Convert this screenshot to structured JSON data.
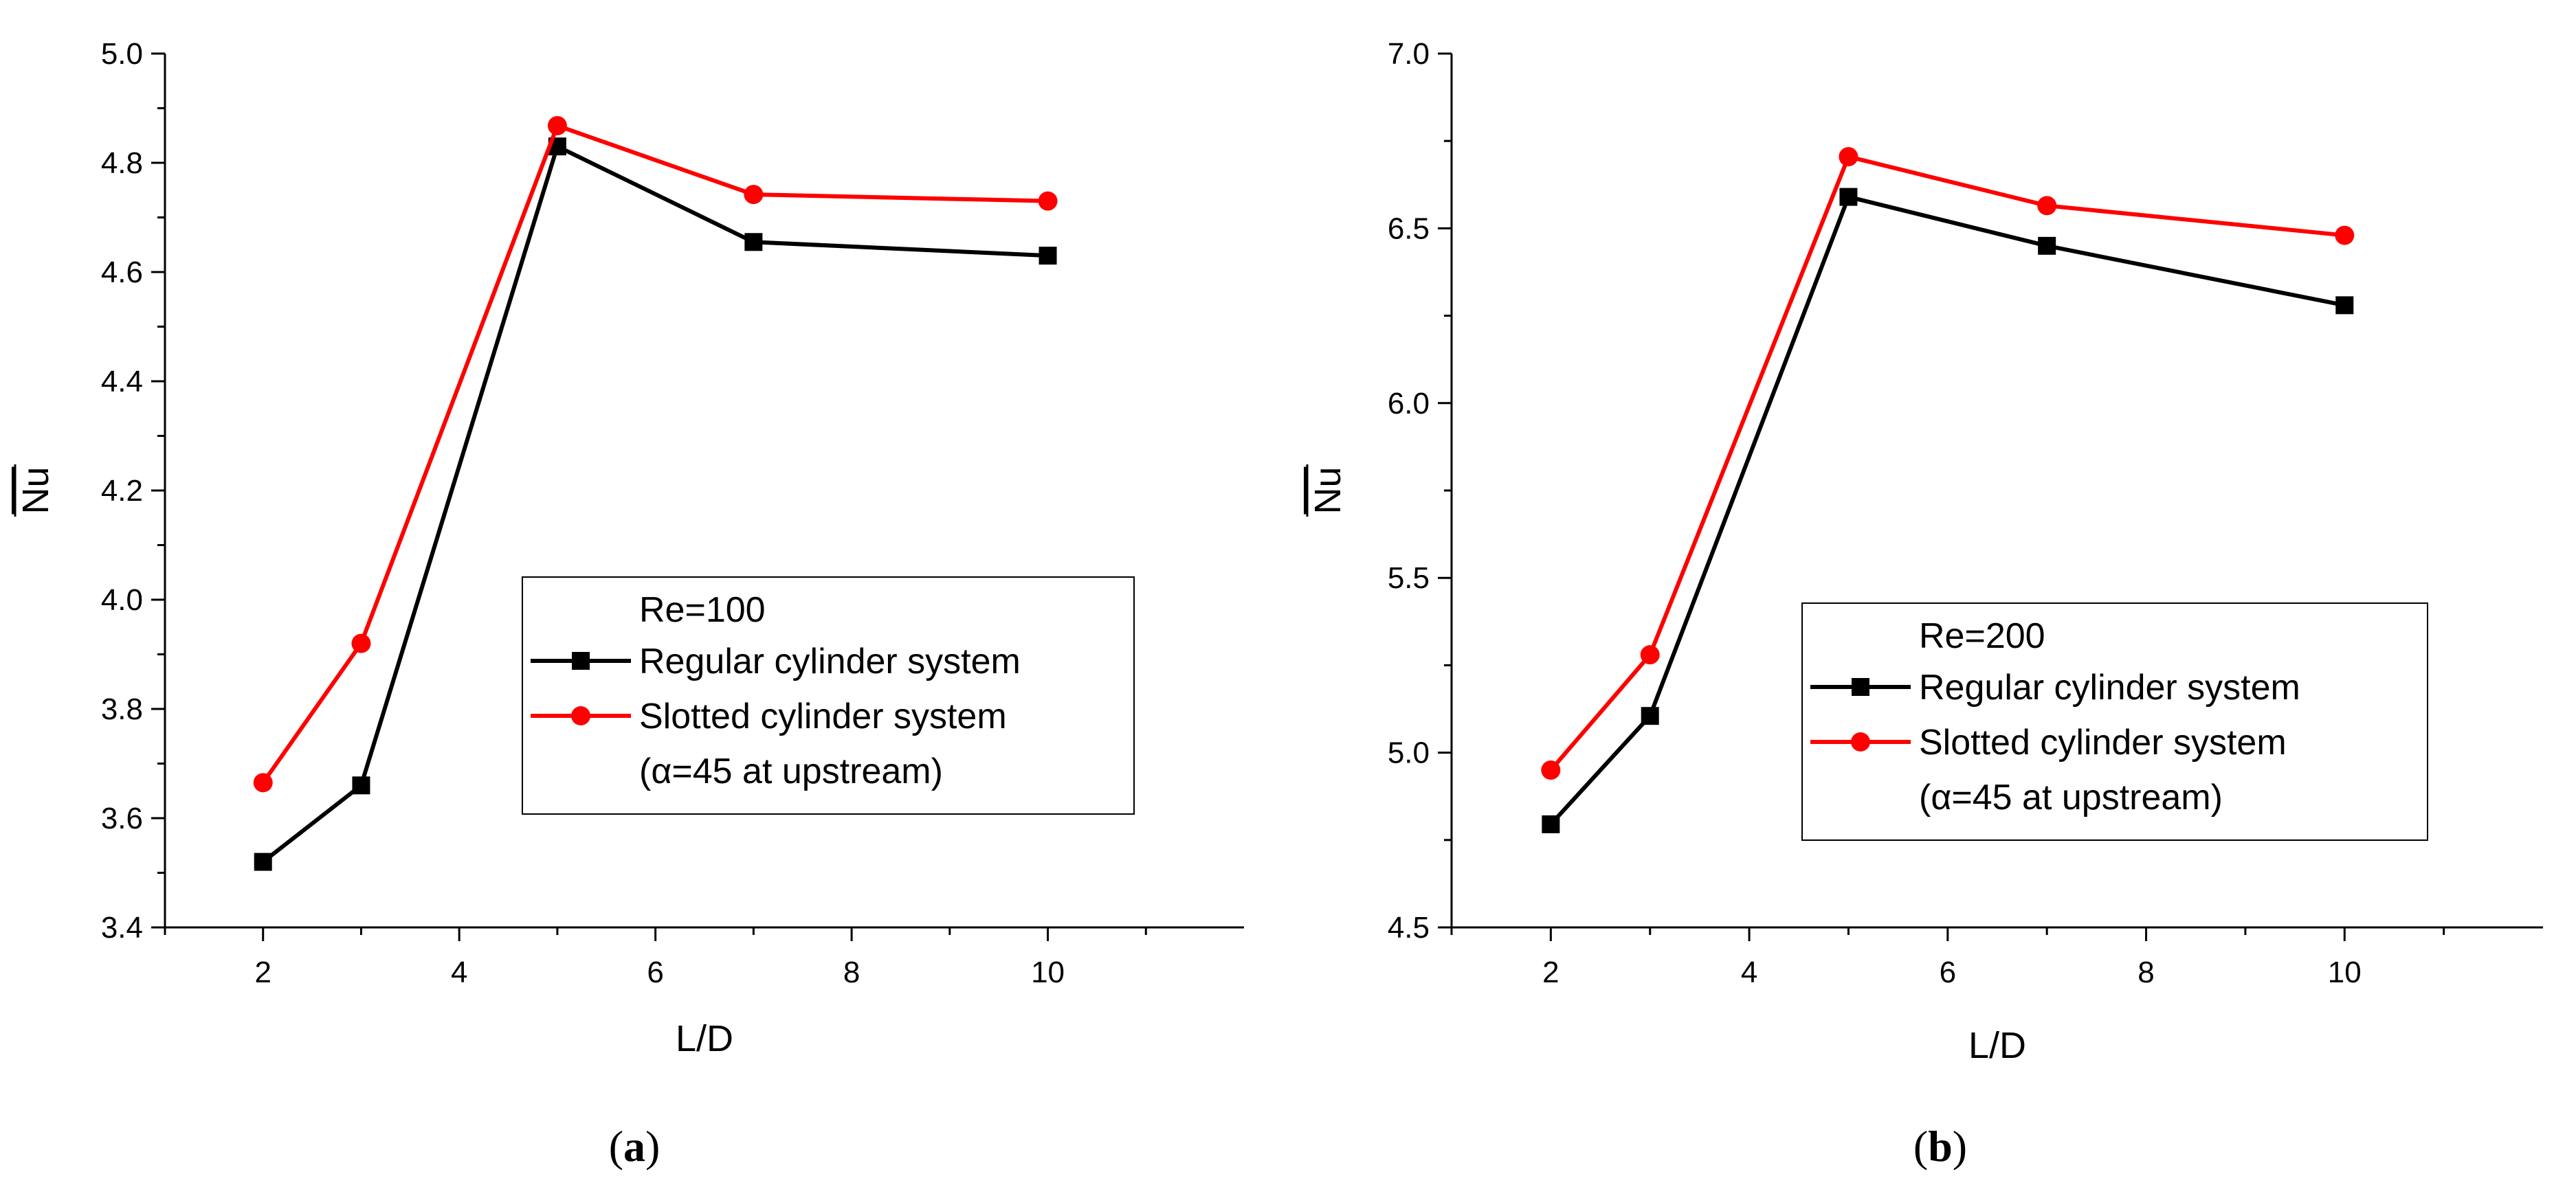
{
  "figure": {
    "panels": [
      {
        "caption_letter": "a"
      },
      {
        "caption_letter": "b"
      }
    ]
  },
  "chart_data": [
    {
      "type": "line",
      "panel": "a",
      "title": "",
      "xlabel": "L/D",
      "ylabel": "Nu",
      "ylabel_overline": true,
      "xlim": [
        1,
        12
      ],
      "ylim": [
        3.4,
        5.0
      ],
      "xticks": [
        2,
        4,
        6,
        8,
        10
      ],
      "xtick_labels": [
        "2",
        "4",
        "6",
        "8",
        "10"
      ],
      "yticks": [
        3.4,
        3.6,
        3.8,
        4.0,
        4.2,
        4.4,
        4.6,
        4.8,
        5.0
      ],
      "ytick_labels": [
        "3.4",
        "3.6",
        "3.8",
        "4.0",
        "4.2",
        "4.4",
        "4.6",
        "4.8",
        "5.0"
      ],
      "grid": false,
      "legend_placement": "center-right",
      "legend_title": "Re=100",
      "x": [
        2,
        3,
        5,
        7,
        10
      ],
      "series": [
        {
          "name": "Regular cylinder system",
          "name_extra": "",
          "color": "#000000",
          "marker": "square",
          "values": [
            3.52,
            3.66,
            4.83,
            4.655,
            4.63
          ]
        },
        {
          "name": "Slotted cylinder system",
          "name_extra": "(α=45 at upstream)",
          "color": "#ff0000",
          "marker": "circle",
          "values": [
            3.665,
            3.92,
            4.868,
            4.742,
            4.73
          ]
        }
      ]
    },
    {
      "type": "line",
      "panel": "b",
      "title": "",
      "xlabel": "L/D",
      "ylabel": "Nu",
      "ylabel_overline": true,
      "xlim": [
        1,
        12
      ],
      "ylim": [
        4.5,
        7.0
      ],
      "xticks": [
        2,
        4,
        6,
        8,
        10
      ],
      "xtick_labels": [
        "2",
        "4",
        "6",
        "8",
        "10"
      ],
      "yticks": [
        4.5,
        5.0,
        5.5,
        6.0,
        6.5,
        7.0
      ],
      "ytick_labels": [
        "4.5",
        "5.0",
        "5.5",
        "6.0",
        "6.5",
        "7.0"
      ],
      "grid": false,
      "legend_placement": "bottom-center",
      "legend_title": "Re=200",
      "x": [
        2,
        3,
        5,
        7,
        10
      ],
      "series": [
        {
          "name": "Regular cylinder system",
          "name_extra": "",
          "color": "#000000",
          "marker": "square",
          "values": [
            4.795,
            5.105,
            6.59,
            6.45,
            6.28
          ]
        },
        {
          "name": "Slotted cylinder system",
          "name_extra": "(α=45 at upstream)",
          "color": "#ff0000",
          "marker": "circle",
          "values": [
            4.95,
            5.28,
            6.705,
            6.565,
            6.48
          ]
        }
      ]
    }
  ]
}
